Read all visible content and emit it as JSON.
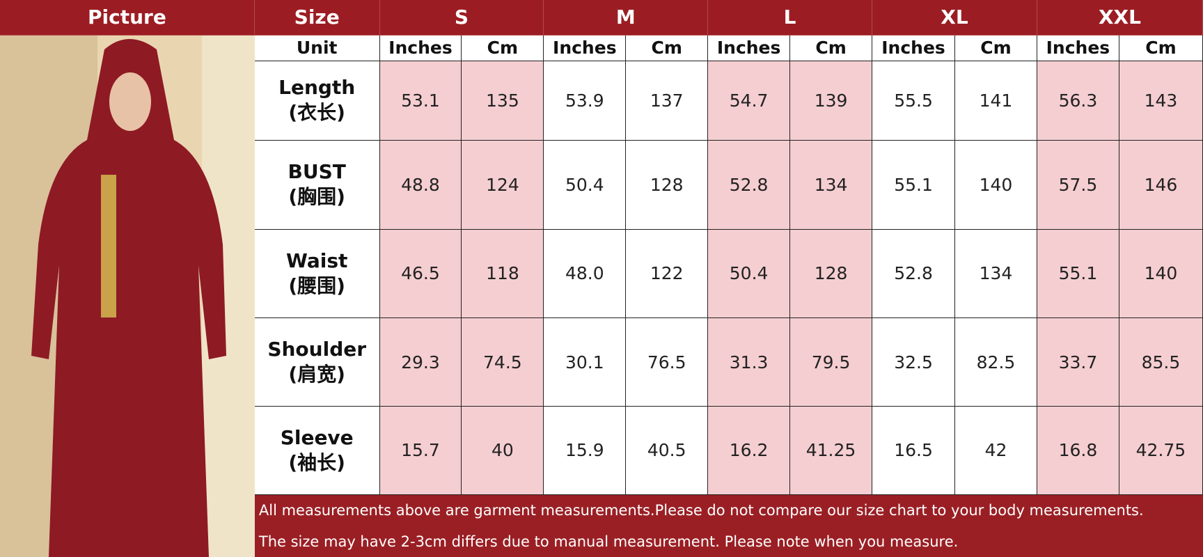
{
  "header": {
    "picture": "Picture",
    "size": "Size",
    "sizes": [
      "S",
      "M",
      "L",
      "XL",
      "XXL"
    ]
  },
  "unit_row": {
    "label": "Unit",
    "units": [
      "Inches",
      "Cm",
      "Inches",
      "Cm",
      "Inches",
      "Cm",
      "Inches",
      "Cm",
      "Inches",
      "Cm"
    ]
  },
  "rows": [
    {
      "name": "Length",
      "name_cn": "(衣长)",
      "values": [
        "53.1",
        "135",
        "53.9",
        "137",
        "54.7",
        "139",
        "55.5",
        "141",
        "56.3",
        "143"
      ]
    },
    {
      "name": "BUST",
      "name_cn": "(胸围)",
      "values": [
        "48.8",
        "124",
        "50.4",
        "128",
        "52.8",
        "134",
        "55.1",
        "140",
        "57.5",
        "146"
      ]
    },
    {
      "name": "Waist",
      "name_cn": "(腰围)",
      "values": [
        "46.5",
        "118",
        "48.0",
        "122",
        "50.4",
        "128",
        "52.8",
        "134",
        "55.1",
        "140"
      ]
    },
    {
      "name": "Shoulder",
      "name_cn": "(肩宽)",
      "values": [
        "29.3",
        "74.5",
        "30.1",
        "76.5",
        "31.3",
        "79.5",
        "32.5",
        "82.5",
        "33.7",
        "85.5"
      ]
    },
    {
      "name": "Sleeve",
      "name_cn": "(袖长)",
      "values": [
        "15.7",
        "40",
        "15.9",
        "40.5",
        "16.2",
        "41.25",
        "16.5",
        "42",
        "16.8",
        "42.75"
      ]
    }
  ],
  "notes": [
    "All measurements above are garment measurements.Please do not compare our size chart to your body measurements.",
    "The size may have 2-3cm differs due to manual measurement. Please note when you measure."
  ]
}
